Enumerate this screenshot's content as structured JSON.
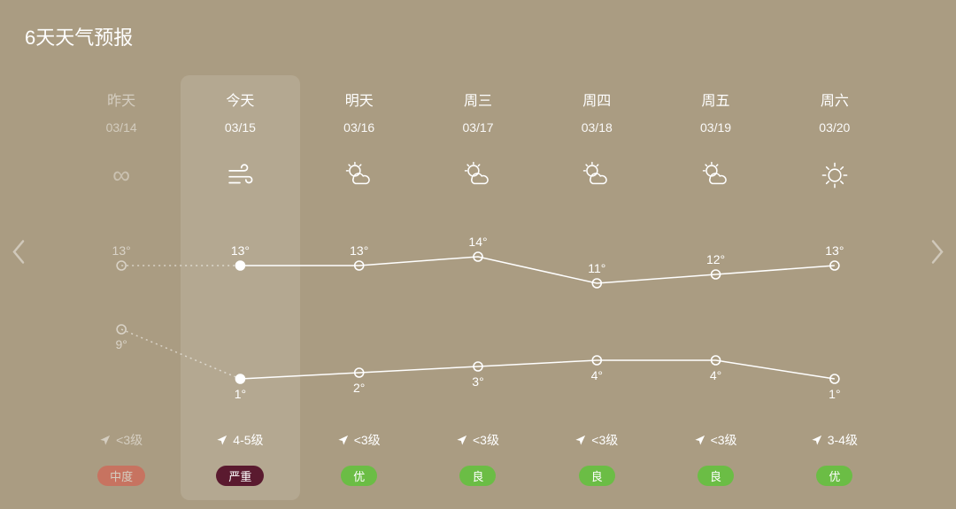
{
  "title": "6天天气预报",
  "background_color": "#aa9c82",
  "chart": {
    "high_temps": [
      13,
      13,
      13,
      14,
      11,
      12,
      13
    ],
    "low_temps": [
      9,
      1,
      2,
      3,
      4,
      4,
      1
    ],
    "line_color_high": "#ffffff",
    "line_color_low": "#ffffff",
    "line_width": 1.5,
    "point_radius": 5,
    "ylim_high": [
      10,
      15
    ],
    "ylim_low": [
      0,
      10
    ],
    "label_fontsize": 14
  },
  "days": [
    {
      "name": "昨天",
      "date": "03/14",
      "icon": "infinity",
      "high": "13°",
      "low": "9°",
      "wind": "<3级",
      "wind_dir": 45,
      "aqi_label": "中度",
      "aqi_color": "#e44b3f",
      "is_yesterday": true
    },
    {
      "name": "今天",
      "date": "03/15",
      "icon": "wind",
      "high": "13°",
      "low": "1°",
      "wind": "4-5级",
      "wind_dir": 45,
      "aqi_label": "严重",
      "aqi_color": "#5a1a2f",
      "is_today": true
    },
    {
      "name": "明天",
      "date": "03/16",
      "icon": "partly-cloudy",
      "high": "13°",
      "low": "2°",
      "wind": "<3级",
      "wind_dir": 45,
      "aqi_label": "优",
      "aqi_color": "#6bbd45"
    },
    {
      "name": "周三",
      "date": "03/17",
      "icon": "partly-cloudy",
      "high": "14°",
      "low": "3°",
      "wind": "<3级",
      "wind_dir": 45,
      "aqi_label": "良",
      "aqi_color": "#6bbd45"
    },
    {
      "name": "周四",
      "date": "03/18",
      "icon": "partly-cloudy",
      "high": "11°",
      "low": "4°",
      "wind": "<3级",
      "wind_dir": 45,
      "aqi_label": "良",
      "aqi_color": "#6bbd45"
    },
    {
      "name": "周五",
      "date": "03/19",
      "icon": "partly-cloudy",
      "high": "12°",
      "low": "4°",
      "wind": "<3级",
      "wind_dir": 45,
      "aqi_label": "良",
      "aqi_color": "#6bbd45"
    },
    {
      "name": "周六",
      "date": "03/20",
      "icon": "sunny",
      "high": "13°",
      "low": "1°",
      "wind": "3-4级",
      "wind_dir": 45,
      "aqi_label": "优",
      "aqi_color": "#6bbd45"
    }
  ]
}
